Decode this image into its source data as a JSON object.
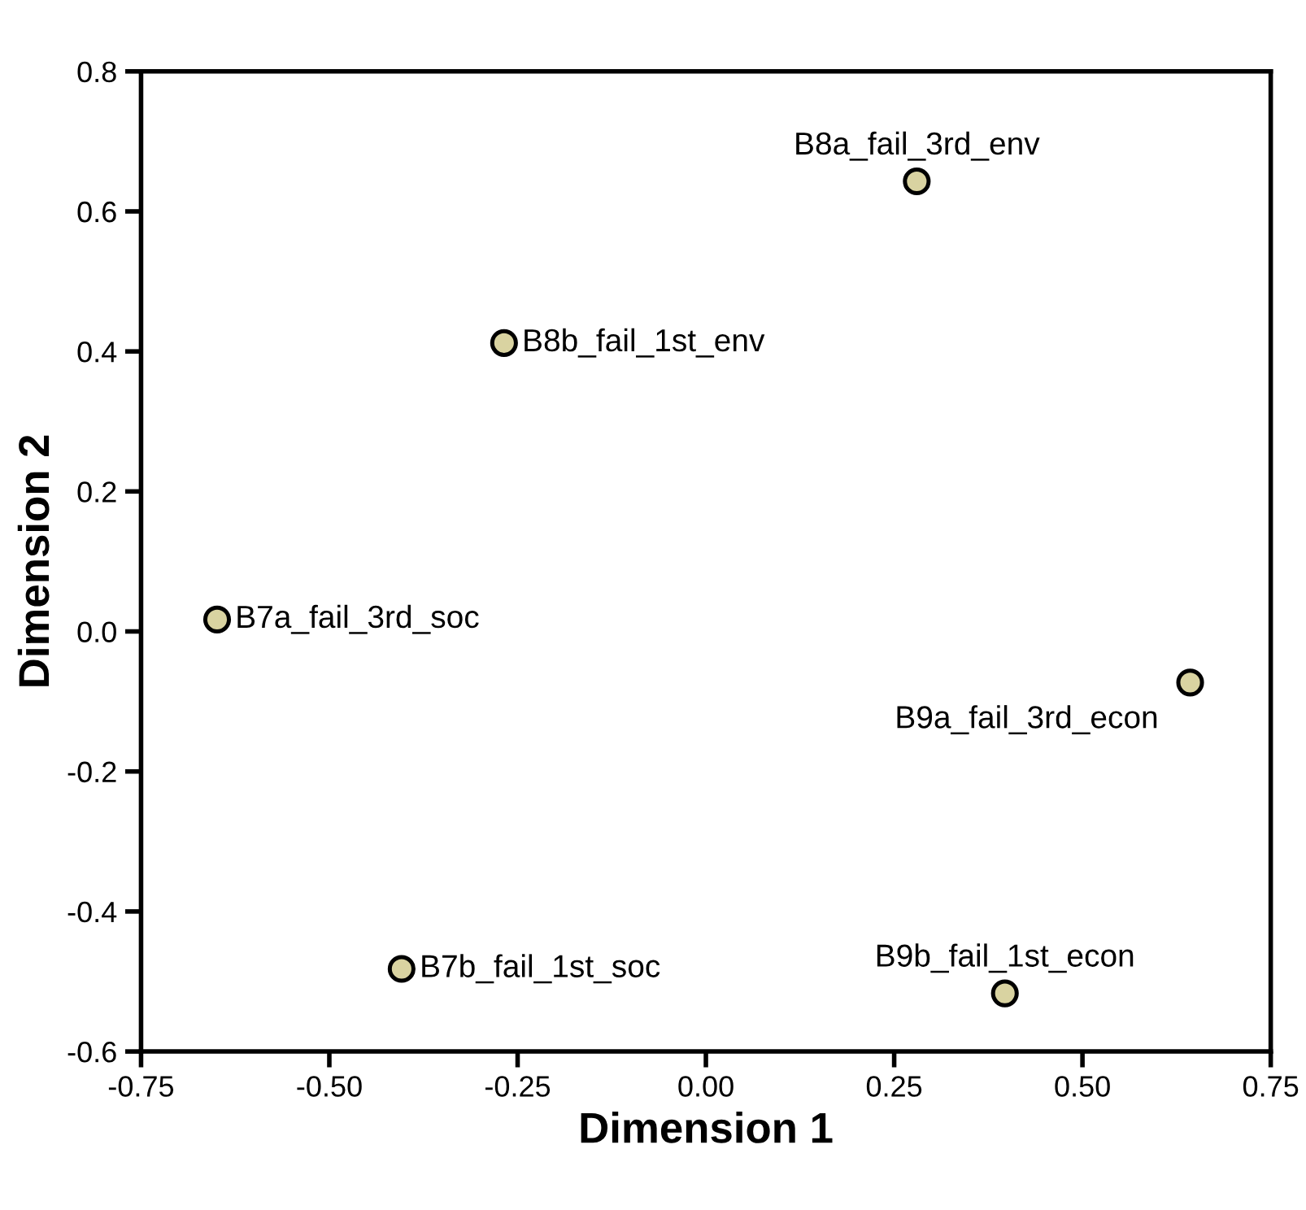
{
  "chart_data": {
    "type": "scatter",
    "xlabel": "Dimension 1",
    "ylabel": "Dimension 2",
    "x": [
      0.28,
      -0.268,
      -0.649,
      0.643,
      -0.404,
      0.397
    ],
    "values": [
      0.643,
      0.412,
      0.017,
      -0.073,
      -0.482,
      -0.517
    ],
    "color": "#d9d3a1",
    "marker": "circle",
    "grid": false,
    "legend": false,
    "xlim": [
      -0.75,
      0.75
    ],
    "xticks": [
      {
        "value": -0.75,
        "label": "-0.75"
      },
      {
        "value": -0.5,
        "label": "-0.50"
      },
      {
        "value": -0.25,
        "label": "-0.25"
      },
      {
        "value": 0,
        "label": "0.00"
      },
      {
        "value": 0.25,
        "label": "0.25"
      },
      {
        "value": 0.5,
        "label": "0.50"
      },
      {
        "value": 0.75,
        "label": "0.75"
      }
    ],
    "ylim": [
      -0.6,
      0.8
    ],
    "yticks": [
      {
        "value": -0.6,
        "label": "-0.6"
      },
      {
        "value": -0.4,
        "label": "-0.4"
      },
      {
        "value": -0.2,
        "label": "-0.2"
      },
      {
        "value": 0,
        "label": "0.0"
      },
      {
        "value": 0.2,
        "label": "0.2"
      },
      {
        "value": 0.4,
        "label": "0.4"
      },
      {
        "value": 0.6,
        "label": "0.6"
      },
      {
        "value": 0.8,
        "label": "0.8"
      }
    ],
    "annotations": [
      {
        "text": "B8a_fail_3rd_env",
        "x": 0.28,
        "y": 0.643
      },
      {
        "text": "B8b_fail_1st_env",
        "x": -0.268,
        "y": 0.412
      },
      {
        "text": "B7a_fail_3rd_soc",
        "x": -0.649,
        "y": 0.017
      },
      {
        "text": "B9a_fail_3rd_econ",
        "x": 0.643,
        "y": -0.073
      },
      {
        "text": "B7b_fail_1st_soc",
        "x": -0.404,
        "y": -0.482
      },
      {
        "text": "B9b_fail_1st_econ",
        "x": 0.397,
        "y": -0.517
      }
    ]
  }
}
